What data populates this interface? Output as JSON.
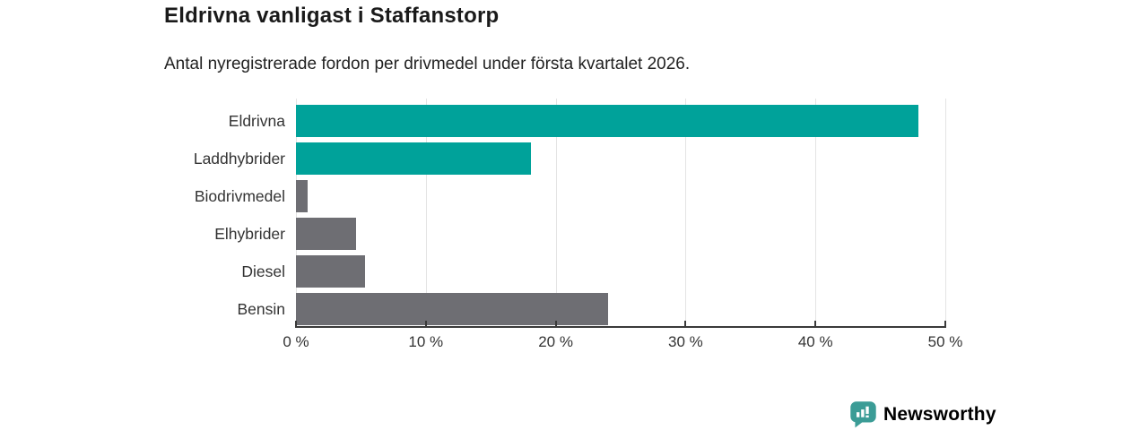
{
  "header": {
    "title": "Eldrivna vanligast i Staffanstorp",
    "subtitle": "Antal nyregistrerade fordon per drivmedel under första kvartalet 2026."
  },
  "chart_data": {
    "type": "bar",
    "orientation": "horizontal",
    "title": "Eldrivna vanligast i Staffanstorp",
    "subtitle": "Antal nyregistrerade fordon per drivmedel under första kvartalet 2026.",
    "categories": [
      "Eldrivna",
      "Laddhybrider",
      "Biodrivmedel",
      "Elhybrider",
      "Diesel",
      "Bensin"
    ],
    "values": [
      47.9,
      18.1,
      0.9,
      4.6,
      5.3,
      24.0
    ],
    "unit": "%",
    "xlim": [
      0,
      50
    ],
    "x_ticks": [
      0,
      10,
      20,
      30,
      40,
      50
    ],
    "x_tick_labels": [
      "0 %",
      "10 %",
      "20 %",
      "30 %",
      "40 %",
      "50 %"
    ],
    "grid": "vertical",
    "legend": "none",
    "bar_colors": [
      "#00a29a",
      "#00a29a",
      "#6e6e73",
      "#6e6e73",
      "#6e6e73",
      "#6e6e73"
    ]
  },
  "colors": {
    "teal_bar": "#00a29a",
    "gray_bar": "#6e6e73",
    "gridline": "#e4e4e4",
    "axis": "#3a3a3a",
    "text_dark": "#1a1a1a",
    "text_label": "#333333",
    "brand_teal": "#3b9c96"
  },
  "footer": {
    "brand": "Newsworthy",
    "logo_icon": "bar-chart-speech-bubble-icon"
  }
}
